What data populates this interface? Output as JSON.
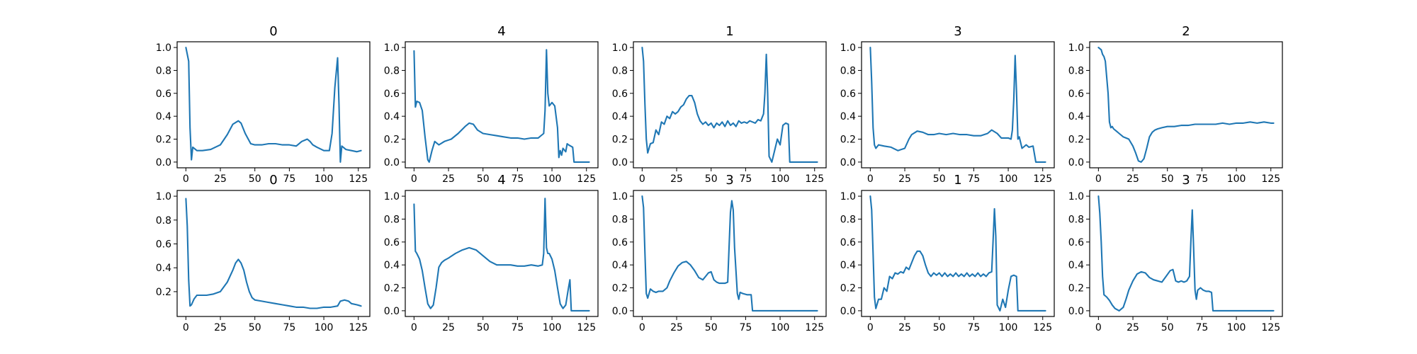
{
  "chart_data": [
    {
      "type": "line",
      "title": "0",
      "xlim": [
        0,
        127
      ],
      "ylim": [
        0,
        1.0
      ],
      "xticks": [
        0,
        25,
        50,
        75,
        100,
        125
      ],
      "yticks": [
        0.0,
        0.2,
        0.4,
        0.6,
        0.8,
        1.0
      ],
      "x": [
        0,
        2,
        3,
        4,
        5,
        8,
        12,
        18,
        25,
        30,
        34,
        38,
        40,
        43,
        47,
        50,
        55,
        60,
        65,
        70,
        75,
        80,
        84,
        88,
        90,
        92,
        95,
        100,
        104,
        106,
        108,
        110,
        111,
        112,
        113,
        116,
        120,
        124,
        127
      ],
      "y": [
        1.0,
        0.88,
        0.3,
        0.02,
        0.13,
        0.1,
        0.1,
        0.11,
        0.15,
        0.24,
        0.33,
        0.36,
        0.34,
        0.25,
        0.16,
        0.15,
        0.15,
        0.16,
        0.16,
        0.15,
        0.15,
        0.14,
        0.18,
        0.2,
        0.18,
        0.15,
        0.13,
        0.1,
        0.1,
        0.25,
        0.65,
        0.91,
        0.5,
        0.0,
        0.14,
        0.11,
        0.1,
        0.09,
        0.1
      ]
    },
    {
      "type": "line",
      "title": "4",
      "xlim": [
        0,
        127
      ],
      "ylim": [
        0,
        1.0
      ],
      "xticks": [
        0,
        25,
        50,
        75,
        100,
        125
      ],
      "yticks": [
        0.0,
        0.2,
        0.4,
        0.6,
        0.8,
        1.0
      ],
      "x": [
        0,
        1,
        2,
        4,
        6,
        8,
        10,
        11,
        13,
        15,
        18,
        22,
        27,
        32,
        37,
        40,
        43,
        46,
        50,
        55,
        60,
        65,
        70,
        75,
        80,
        85,
        90,
        94,
        95,
        96,
        97,
        98,
        100,
        102,
        104,
        105,
        106,
        107,
        108,
        110,
        111,
        112,
        115,
        116,
        118,
        120,
        124,
        127
      ],
      "y": [
        0.97,
        0.48,
        0.53,
        0.52,
        0.45,
        0.22,
        0.02,
        0.0,
        0.1,
        0.18,
        0.15,
        0.18,
        0.2,
        0.25,
        0.31,
        0.34,
        0.33,
        0.28,
        0.25,
        0.24,
        0.23,
        0.22,
        0.21,
        0.21,
        0.2,
        0.21,
        0.21,
        0.25,
        0.45,
        0.98,
        0.6,
        0.49,
        0.52,
        0.49,
        0.3,
        0.04,
        0.1,
        0.06,
        0.12,
        0.09,
        0.16,
        0.15,
        0.13,
        0.0,
        0.0,
        0.0,
        0.0,
        0.0
      ]
    },
    {
      "type": "line",
      "title": "1",
      "xlim": [
        0,
        127
      ],
      "ylim": [
        0,
        1.0
      ],
      "xticks": [
        0,
        25,
        50,
        75,
        100,
        125
      ],
      "yticks": [
        0.0,
        0.2,
        0.4,
        0.6,
        0.8,
        1.0
      ],
      "x": [
        0,
        1,
        2,
        3,
        4,
        6,
        8,
        10,
        12,
        14,
        16,
        18,
        20,
        22,
        24,
        26,
        28,
        30,
        32,
        34,
        36,
        38,
        40,
        42,
        44,
        46,
        48,
        50,
        52,
        54,
        56,
        58,
        60,
        62,
        64,
        66,
        68,
        70,
        72,
        74,
        76,
        78,
        80,
        82,
        84,
        86,
        88,
        89,
        90,
        91,
        92,
        94,
        96,
        98,
        100,
        102,
        104,
        106,
        107,
        109,
        115,
        120,
        127
      ],
      "y": [
        1.0,
        0.88,
        0.5,
        0.2,
        0.08,
        0.16,
        0.17,
        0.28,
        0.24,
        0.35,
        0.33,
        0.4,
        0.38,
        0.44,
        0.42,
        0.44,
        0.48,
        0.5,
        0.55,
        0.58,
        0.58,
        0.52,
        0.42,
        0.36,
        0.33,
        0.35,
        0.32,
        0.34,
        0.3,
        0.34,
        0.32,
        0.35,
        0.31,
        0.36,
        0.32,
        0.34,
        0.31,
        0.36,
        0.34,
        0.35,
        0.34,
        0.36,
        0.35,
        0.34,
        0.37,
        0.36,
        0.42,
        0.6,
        0.94,
        0.6,
        0.05,
        0.0,
        0.1,
        0.2,
        0.15,
        0.32,
        0.34,
        0.33,
        0.0,
        0.0,
        0.0,
        0.0,
        0.0
      ]
    },
    {
      "type": "line",
      "title": "3",
      "xlim": [
        0,
        127
      ],
      "ylim": [
        0,
        1.0
      ],
      "xticks": [
        0,
        25,
        50,
        75,
        100,
        125
      ],
      "yticks": [
        0.0,
        0.2,
        0.4,
        0.6,
        0.8,
        1.0
      ],
      "x": [
        0,
        1,
        2,
        3,
        4,
        6,
        10,
        15,
        20,
        25,
        28,
        30,
        34,
        38,
        42,
        46,
        50,
        55,
        60,
        65,
        70,
        75,
        80,
        85,
        88,
        92,
        95,
        100,
        102,
        103,
        104,
        105,
        106,
        107,
        108,
        110,
        113,
        115,
        118,
        120,
        124,
        127
      ],
      "y": [
        1.0,
        0.7,
        0.3,
        0.15,
        0.12,
        0.15,
        0.14,
        0.13,
        0.1,
        0.12,
        0.2,
        0.24,
        0.27,
        0.26,
        0.24,
        0.24,
        0.25,
        0.24,
        0.25,
        0.24,
        0.24,
        0.23,
        0.23,
        0.25,
        0.28,
        0.25,
        0.21,
        0.21,
        0.2,
        0.28,
        0.55,
        0.93,
        0.62,
        0.2,
        0.22,
        0.12,
        0.15,
        0.13,
        0.14,
        0.0,
        0.0,
        0.0
      ]
    },
    {
      "type": "line",
      "title": "2",
      "xlim": [
        0,
        127
      ],
      "ylim": [
        0,
        1.0
      ],
      "xticks": [
        0,
        25,
        50,
        75,
        100,
        125
      ],
      "yticks": [
        0.0,
        0.2,
        0.4,
        0.6,
        0.8,
        1.0
      ],
      "x": [
        0,
        1,
        2,
        3,
        4,
        5,
        7,
        8,
        9,
        10,
        11,
        13,
        15,
        18,
        20,
        22,
        25,
        27,
        29,
        31,
        33,
        35,
        37,
        39,
        41,
        43,
        46,
        50,
        55,
        60,
        65,
        70,
        75,
        80,
        85,
        90,
        95,
        100,
        105,
        110,
        115,
        120,
        125,
        127
      ],
      "y": [
        1.0,
        0.99,
        0.98,
        0.94,
        0.92,
        0.88,
        0.6,
        0.35,
        0.3,
        0.31,
        0.29,
        0.27,
        0.25,
        0.22,
        0.21,
        0.2,
        0.14,
        0.08,
        0.01,
        0.0,
        0.03,
        0.12,
        0.22,
        0.26,
        0.28,
        0.29,
        0.3,
        0.31,
        0.31,
        0.32,
        0.32,
        0.33,
        0.33,
        0.33,
        0.33,
        0.34,
        0.33,
        0.34,
        0.34,
        0.35,
        0.34,
        0.35,
        0.34,
        0.34
      ]
    },
    {
      "type": "line",
      "title": "0",
      "xlim": [
        0,
        127
      ],
      "ylim": [
        0.04,
        1.0
      ],
      "xticks": [
        0,
        25,
        50,
        75,
        100,
        125
      ],
      "yticks": [
        0.2,
        0.4,
        0.6,
        0.8,
        1.0
      ],
      "x": [
        0,
        1,
        2,
        3,
        4,
        6,
        8,
        10,
        15,
        20,
        25,
        30,
        34,
        36,
        38,
        40,
        42,
        44,
        46,
        48,
        50,
        55,
        60,
        65,
        70,
        75,
        80,
        85,
        90,
        95,
        100,
        105,
        110,
        112,
        115,
        118,
        120,
        124,
        127
      ],
      "y": [
        0.98,
        0.75,
        0.3,
        0.08,
        0.09,
        0.14,
        0.17,
        0.17,
        0.17,
        0.18,
        0.2,
        0.28,
        0.38,
        0.44,
        0.47,
        0.44,
        0.38,
        0.28,
        0.2,
        0.15,
        0.13,
        0.12,
        0.11,
        0.1,
        0.09,
        0.08,
        0.07,
        0.07,
        0.06,
        0.06,
        0.07,
        0.07,
        0.08,
        0.12,
        0.13,
        0.12,
        0.1,
        0.09,
        0.08
      ]
    },
    {
      "type": "line",
      "title": "4",
      "xlim": [
        0,
        127
      ],
      "ylim": [
        0,
        1.0
      ],
      "xticks": [
        0,
        25,
        50,
        75,
        100,
        125
      ],
      "yticks": [
        0.0,
        0.2,
        0.4,
        0.6,
        0.8,
        1.0
      ],
      "x": [
        0,
        1,
        2,
        4,
        6,
        8,
        10,
        12,
        14,
        16,
        18,
        20,
        22,
        25,
        30,
        35,
        40,
        45,
        50,
        55,
        60,
        65,
        70,
        75,
        80,
        85,
        90,
        93,
        94,
        95,
        96,
        97,
        98,
        100,
        102,
        104,
        106,
        108,
        110,
        112,
        113,
        114,
        116,
        120,
        124,
        127
      ],
      "y": [
        0.93,
        0.52,
        0.5,
        0.45,
        0.35,
        0.2,
        0.06,
        0.02,
        0.05,
        0.2,
        0.38,
        0.42,
        0.44,
        0.46,
        0.5,
        0.53,
        0.55,
        0.53,
        0.48,
        0.43,
        0.4,
        0.4,
        0.4,
        0.39,
        0.39,
        0.4,
        0.39,
        0.4,
        0.5,
        0.98,
        0.55,
        0.5,
        0.5,
        0.45,
        0.35,
        0.2,
        0.06,
        0.02,
        0.05,
        0.2,
        0.27,
        0.0,
        0.0,
        0.0,
        0.0,
        0.0
      ]
    },
    {
      "type": "line",
      "title": "3",
      "xlim": [
        0,
        127
      ],
      "ylim": [
        0,
        1.0
      ],
      "xticks": [
        0,
        25,
        50,
        75,
        100,
        125
      ],
      "yticks": [
        0.0,
        0.2,
        0.4,
        0.6,
        0.8,
        1.0
      ],
      "x": [
        0,
        1,
        2,
        3,
        4,
        6,
        8,
        10,
        12,
        15,
        18,
        20,
        23,
        26,
        29,
        32,
        35,
        38,
        41,
        44,
        46,
        48,
        50,
        52,
        54,
        56,
        58,
        60,
        62,
        63,
        64,
        65,
        66,
        67,
        69,
        70,
        71,
        73,
        76,
        79,
        80,
        82,
        85,
        90,
        95,
        100,
        105,
        110,
        115,
        120,
        127
      ],
      "y": [
        1.0,
        0.9,
        0.5,
        0.15,
        0.11,
        0.19,
        0.17,
        0.16,
        0.17,
        0.17,
        0.2,
        0.26,
        0.33,
        0.39,
        0.42,
        0.43,
        0.4,
        0.35,
        0.29,
        0.27,
        0.3,
        0.33,
        0.34,
        0.27,
        0.25,
        0.24,
        0.24,
        0.24,
        0.25,
        0.55,
        0.86,
        0.96,
        0.88,
        0.55,
        0.15,
        0.1,
        0.16,
        0.15,
        0.14,
        0.14,
        0.0,
        0.0,
        0.0,
        0.0,
        0.0,
        0.0,
        0.0,
        0.0,
        0.0,
        0.0,
        0.0
      ]
    },
    {
      "type": "line",
      "title": "1",
      "xlim": [
        0,
        127
      ],
      "ylim": [
        0,
        1.0
      ],
      "xticks": [
        0,
        25,
        50,
        75,
        100,
        125
      ],
      "yticks": [
        0.0,
        0.2,
        0.4,
        0.6,
        0.8,
        1.0
      ],
      "x": [
        0,
        1,
        2,
        3,
        4,
        6,
        8,
        10,
        12,
        14,
        16,
        18,
        20,
        22,
        24,
        26,
        28,
        30,
        32,
        34,
        36,
        38,
        40,
        42,
        44,
        46,
        48,
        50,
        52,
        54,
        56,
        58,
        60,
        62,
        64,
        66,
        68,
        70,
        72,
        74,
        76,
        78,
        80,
        82,
        84,
        86,
        88,
        89,
        90,
        91,
        92,
        94,
        96,
        98,
        100,
        102,
        104,
        106,
        107,
        109,
        115,
        120,
        127
      ],
      "y": [
        1.0,
        0.88,
        0.5,
        0.12,
        0.02,
        0.1,
        0.1,
        0.2,
        0.17,
        0.3,
        0.28,
        0.33,
        0.32,
        0.34,
        0.33,
        0.38,
        0.36,
        0.42,
        0.48,
        0.52,
        0.52,
        0.48,
        0.4,
        0.33,
        0.3,
        0.33,
        0.31,
        0.33,
        0.3,
        0.33,
        0.3,
        0.32,
        0.3,
        0.33,
        0.3,
        0.32,
        0.3,
        0.33,
        0.3,
        0.32,
        0.3,
        0.33,
        0.3,
        0.32,
        0.3,
        0.33,
        0.34,
        0.6,
        0.89,
        0.65,
        0.05,
        0.0,
        0.1,
        0.03,
        0.18,
        0.3,
        0.31,
        0.3,
        0.0,
        0.0,
        0.0,
        0.0,
        0.0
      ]
    },
    {
      "type": "line",
      "title": "3",
      "xlim": [
        0,
        127
      ],
      "ylim": [
        0,
        1.0
      ],
      "xticks": [
        0,
        25,
        50,
        75,
        100,
        125
      ],
      "yticks": [
        0.0,
        0.2,
        0.4,
        0.6,
        0.8,
        1.0
      ],
      "x": [
        0,
        1,
        2,
        3,
        4,
        6,
        8,
        10,
        12,
        15,
        18,
        20,
        22,
        25,
        28,
        31,
        34,
        37,
        40,
        43,
        46,
        49,
        52,
        54,
        56,
        58,
        60,
        62,
        64,
        66,
        67,
        68,
        69,
        70,
        71,
        72,
        74,
        76,
        78,
        80,
        82,
        83,
        85,
        90,
        95,
        100,
        105,
        110,
        115,
        120,
        127
      ],
      "y": [
        1.0,
        0.85,
        0.6,
        0.3,
        0.14,
        0.12,
        0.09,
        0.05,
        0.02,
        0.0,
        0.03,
        0.1,
        0.18,
        0.26,
        0.32,
        0.34,
        0.33,
        0.29,
        0.27,
        0.26,
        0.25,
        0.3,
        0.35,
        0.36,
        0.26,
        0.25,
        0.26,
        0.25,
        0.26,
        0.3,
        0.6,
        0.88,
        0.55,
        0.18,
        0.1,
        0.18,
        0.2,
        0.18,
        0.17,
        0.17,
        0.16,
        0.0,
        0.0,
        0.0,
        0.0,
        0.0,
        0.0,
        0.0,
        0.0,
        0.0,
        0.0
      ]
    }
  ]
}
